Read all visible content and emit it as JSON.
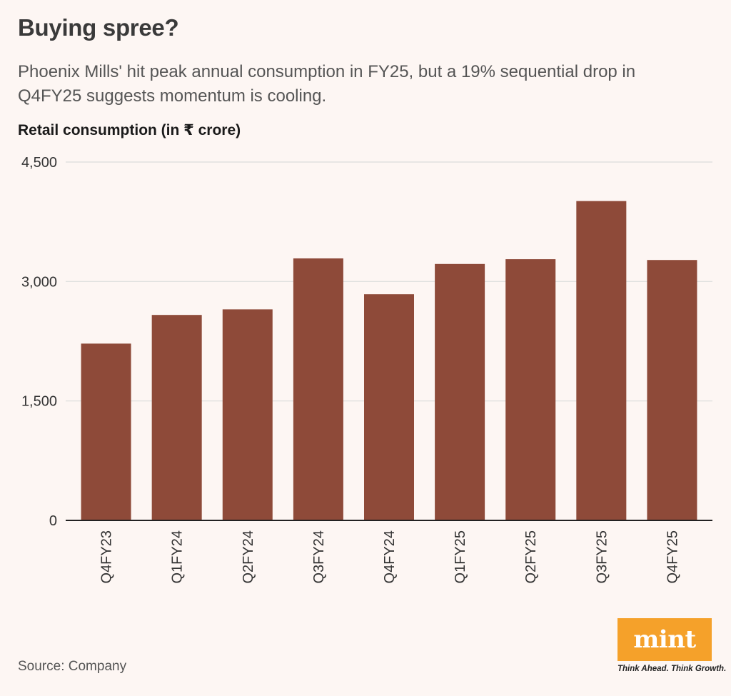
{
  "header": {
    "title": "Buying spree?",
    "subtitle": "Phoenix Mills' hit peak annual consumption in FY25, but a 19% sequential drop in Q4FY25 suggests momentum is cooling.",
    "axis_title": "Retail consumption (in ₹ crore)"
  },
  "footer": {
    "source": "Source: Company",
    "logo_text": "mint",
    "tagline": "Think Ahead. Think Growth."
  },
  "colors": {
    "bar": "#8e4a39",
    "grid": "#dcdcdc",
    "baseline": "#222222",
    "logo": "#f5a12a",
    "background": "#fdf6f3"
  },
  "chart_data": {
    "type": "bar",
    "categories": [
      "Q4FY23",
      "Q1FY24",
      "Q2FY24",
      "Q3FY24",
      "Q4FY24",
      "Q1FY25",
      "Q2FY25",
      "Q3FY25",
      "Q4FY25"
    ],
    "values": [
      2220,
      2580,
      2650,
      3290,
      2840,
      3220,
      3280,
      4010,
      3270
    ],
    "ylabel": "Retail consumption (in ₹ crore)",
    "ylim": [
      0,
      4500
    ],
    "yticks": [
      0,
      1500,
      3000,
      4500
    ],
    "ytick_labels": [
      "0",
      "1,500",
      "3,000",
      "4,500"
    ],
    "grid": true
  }
}
